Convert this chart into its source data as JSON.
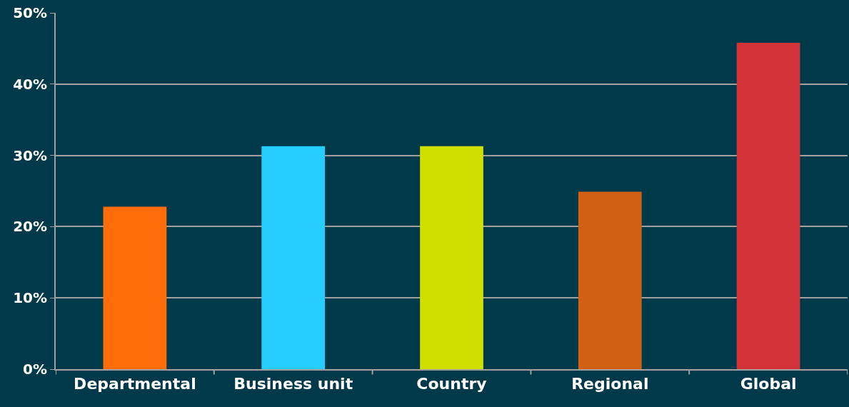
{
  "chart_data": {
    "type": "bar",
    "categories": [
      "Departmental",
      "Business unit",
      "Country",
      "Regional",
      "Global"
    ],
    "values": [
      22.8,
      31.3,
      31.3,
      24.9,
      45.8
    ],
    "colors": [
      "#ff6d0a",
      "#26ceff",
      "#d0de00",
      "#d36012",
      "#d23238"
    ],
    "ylim": [
      0,
      50
    ],
    "yticks": [
      {
        "value": 0,
        "label": "0%"
      },
      {
        "value": 10,
        "label": "10%"
      },
      {
        "value": 20,
        "label": "20%"
      },
      {
        "value": 30,
        "label": "30%"
      },
      {
        "value": 40,
        "label": "40%"
      },
      {
        "value": 50,
        "label": "50%"
      }
    ],
    "grid": "y"
  }
}
